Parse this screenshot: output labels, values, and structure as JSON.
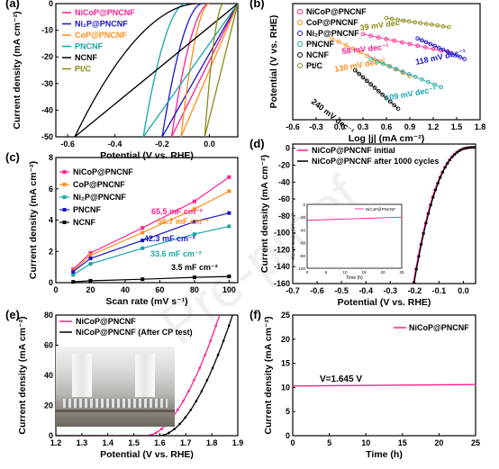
{
  "colors": {
    "magenta": "#ff1f8e",
    "blue": "#1a13c9",
    "orange": "#ff8c1a",
    "teal": "#1aa6a6",
    "black": "#000000",
    "olive": "#8a8a14"
  },
  "watermark": "Pre-proof",
  "chart_data": [
    {
      "panel": "(a)",
      "type": "line",
      "xlabel": "Potential (V vs. RHE)",
      "ylabel": "Current density (mA cm⁻²)",
      "xlim": [
        -0.65,
        0.12
      ],
      "ylim": [
        -50,
        0
      ],
      "xticks": [
        "-0.6",
        "-0.4",
        "-0.2",
        "0.0"
      ],
      "yticks": [
        "0",
        "-10",
        "-20",
        "-30",
        "-40",
        "-50"
      ],
      "legend": [
        "NiCoP@PNCNF",
        "Ni₂P@PNCNF",
        "CoP@PNCNF",
        "PNCNF",
        "NCNF",
        "Pt/C"
      ],
      "series": [
        {
          "name": "NiCoP@PNCNF",
          "color": "#ff1f8e",
          "onset": 0.0,
          "x50": -0.16
        },
        {
          "name": "Ni₂P@PNCNF",
          "color": "#1a13c9",
          "onset": -0.03,
          "x50": -0.2
        },
        {
          "name": "CoP@PNCNF",
          "color": "#ff8c1a",
          "onset": 0.0,
          "x50": -0.12
        },
        {
          "name": "PNCNF",
          "color": "#1aa6a6",
          "onset": -0.1,
          "x50": -0.28
        },
        {
          "name": "NCNF",
          "color": "#000000",
          "onset": -0.05,
          "x50": -0.57
        },
        {
          "name": "Pt/C",
          "color": "#8a8a14",
          "onset": 0.06,
          "x50": -0.02
        }
      ]
    },
    {
      "panel": "(b)",
      "type": "scatter",
      "xlabel": "Log |j| (mA cm⁻²)",
      "ylabel": "Potential (V vs. RHE)",
      "xlim": [
        -0.6,
        1.8
      ],
      "ylim": [
        -0.35,
        0.05
      ],
      "xticks": [
        "-0.6",
        "-0.3",
        "0.0",
        "0.3",
        "0.6",
        "0.9",
        "1.2",
        "1.5",
        "1.8"
      ],
      "legend": [
        "NiCoP@PNCNF",
        "CoP@PNCNF",
        "Ni₂P@PNCNF",
        "PNCNF",
        "NCNF",
        "Pt/C"
      ],
      "series": [
        {
          "name": "Pt/C",
          "color": "#8a8a14",
          "x": [
            0.6,
            1.4
          ],
          "y": [
            0.0,
            -0.031
          ],
          "label": "39 mV dec⁻¹"
        },
        {
          "name": "NiCoP@PNCNF",
          "color": "#ff1f8e",
          "x": [
            0.3,
            1.4
          ],
          "y": [
            -0.055,
            -0.118
          ],
          "label": "58 mV dec⁻¹"
        },
        {
          "name": "Ni₂P@PNCNF",
          "color": "#1a13c9",
          "x": [
            1.0,
            1.6
          ],
          "y": [
            -0.07,
            -0.141
          ],
          "label": "118 mV dec⁻¹"
        },
        {
          "name": "CoP@PNCNF",
          "color": "#ff8c1a",
          "x": [
            -0.1,
            0.9
          ],
          "y": [
            -0.07,
            -0.2
          ],
          "label": "130 mV dec⁻¹"
        },
        {
          "name": "PNCNF",
          "color": "#1aa6a6",
          "x": [
            0.4,
            1.3
          ],
          "y": [
            -0.14,
            -0.238
          ],
          "label": "109 mV dec⁻¹"
        },
        {
          "name": "NCNF",
          "color": "#000000",
          "x": [
            0.2,
            0.75
          ],
          "y": [
            -0.18,
            -0.312
          ],
          "label": "240 mV dec⁻¹"
        }
      ]
    },
    {
      "panel": "(c)",
      "type": "line",
      "xlabel": "Scan rate (mV s⁻¹)",
      "ylabel": "Current density (mA cm⁻²)",
      "xlim": [
        0,
        105
      ],
      "ylim": [
        0,
        8
      ],
      "xticks": [
        "0",
        "20",
        "40",
        "60",
        "80",
        "100"
      ],
      "yticks": [
        "0",
        "2",
        "4",
        "6",
        "8"
      ],
      "categories": [
        10,
        20,
        50,
        80,
        100
      ],
      "series": [
        {
          "name": "NiCoP@PNCNF",
          "color": "#ff1f8e",
          "values": [
            0.85,
            1.9,
            3.5,
            5.2,
            6.75
          ],
          "label": "65.5 mF cm⁻²"
        },
        {
          "name": "CoP@PNCNF",
          "color": "#ff8c1a",
          "values": [
            0.75,
            1.75,
            3.2,
            4.7,
            5.85
          ],
          "label": "56.7 mF cm⁻²"
        },
        {
          "name": "Ni₂P@PNCNF",
          "color": "#1aa6a6",
          "values": [
            0.5,
            1.2,
            2.2,
            3.1,
            3.6
          ],
          "label": "33.6 mF cm⁻²"
        },
        {
          "name": "PNCNF",
          "color": "#1a13c9",
          "values": [
            0.7,
            1.55,
            2.7,
            3.9,
            4.45
          ],
          "label": "42.3 mF cm⁻²"
        },
        {
          "name": "NCNF",
          "color": "#000000",
          "values": [
            0.05,
            0.12,
            0.22,
            0.34,
            0.4
          ],
          "label": "3.5 mF cm⁻²"
        }
      ]
    },
    {
      "panel": "(d)",
      "type": "line",
      "xlabel": "Potential (V vs. RHE)",
      "ylabel": "Current density (mA cm⁻²)",
      "xlim": [
        -0.7,
        0.05
      ],
      "ylim": [
        -160,
        5
      ],
      "xticks": [
        "-0.7",
        "-0.6",
        "-0.5",
        "-0.4",
        "-0.3",
        "-0.2",
        "-0.1",
        "0.0"
      ],
      "yticks": [
        "0",
        "-20",
        "-40",
        "-60",
        "-80",
        "-100",
        "-120",
        "-140",
        "-160"
      ],
      "series": [
        {
          "name": "NiCoP@PNCNF initial",
          "color": "#ff1f8e"
        },
        {
          "name": "NiCoP@PNCNF after 1000 cycles",
          "color": "#000000"
        }
      ],
      "inset": {
        "xlabel": "Time (h)",
        "ylabel": "Current density (mA cm⁻²)",
        "xticks": [
          "0",
          "5",
          "10",
          "15",
          "20",
          "25"
        ],
        "yticks": [
          "0",
          "-20",
          "-40",
          "-60",
          "-80",
          "-100"
        ],
        "legend": "NiCoP@PNCNF",
        "level": -20
      }
    },
    {
      "panel": "(e)",
      "type": "line",
      "xlabel": "Potential (V vs. RHE)",
      "ylabel": "Current density (mA cm⁻²)",
      "xlim": [
        1.2,
        1.9
      ],
      "ylim": [
        0,
        80
      ],
      "xticks": [
        "1.2",
        "1.3",
        "1.4",
        "1.5",
        "1.6",
        "1.7",
        "1.8",
        "1.9"
      ],
      "yticks": [
        "0",
        "20",
        "40",
        "60",
        "80"
      ],
      "series": [
        {
          "name": "NiCoP@PNCNF",
          "color": "#ff1f8e"
        },
        {
          "name": "NiCoP@PNCNF (After CP test)",
          "color": "#000000"
        }
      ]
    },
    {
      "panel": "(f)",
      "type": "line",
      "xlabel": "Time (h)",
      "ylabel": "Current density (mA cm⁻²)",
      "xlim": [
        0,
        25
      ],
      "ylim": [
        0,
        25
      ],
      "xticks": [
        "0",
        "5",
        "10",
        "15",
        "20",
        "25"
      ],
      "yticks": [
        "0",
        "5",
        "10",
        "15",
        "20",
        "25"
      ],
      "series": [
        {
          "name": "NiCoP@PNCNF",
          "color": "#ff1f8e",
          "x": [
            0,
            25
          ],
          "y": [
            10.3,
            10.6
          ]
        }
      ],
      "annotation": "V=1.645 V"
    }
  ]
}
